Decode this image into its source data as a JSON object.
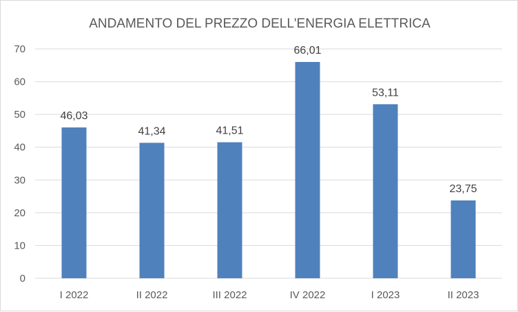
{
  "chart_data": {
    "type": "bar",
    "title": "ANDAMENTO DEL PREZZO DELL'ENERGIA ELETTRICA",
    "categories": [
      "I 2022",
      "II 2022",
      "III 2022",
      "IV 2022",
      "I 2023",
      "II 2023"
    ],
    "values": [
      46.03,
      41.34,
      41.51,
      66.01,
      53.11,
      23.75
    ],
    "data_labels": [
      "46,03",
      "41,34",
      "41,51",
      "66,01",
      "53,11",
      "23,75"
    ],
    "yticks": [
      "0",
      "10",
      "20",
      "30",
      "40",
      "50",
      "60",
      "70"
    ],
    "ylim": [
      0,
      70
    ],
    "grid": true,
    "legend": "none",
    "bar_color": "#4f81bd",
    "gridline_color": "#d9d9d9"
  }
}
